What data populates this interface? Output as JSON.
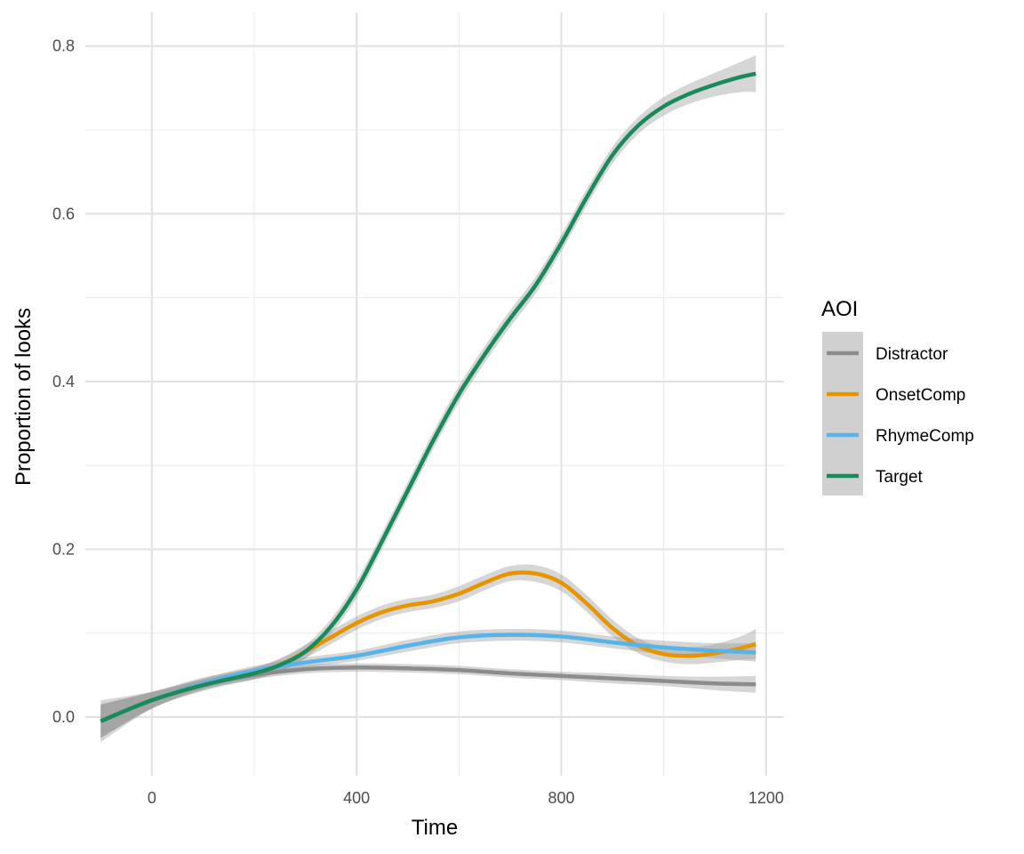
{
  "chart_data": {
    "type": "line",
    "xlabel": "Time",
    "ylabel": "Proportion of looks",
    "xlim": [
      -130,
      1235
    ],
    "ylim": [
      -0.07,
      0.84
    ],
    "x_ticks": [
      0,
      400,
      800,
      1200
    ],
    "y_ticks": [
      0.0,
      0.2,
      0.4,
      0.6,
      0.8
    ],
    "x_tick_labels": [
      "0",
      "400",
      "800",
      "1200"
    ],
    "y_tick_labels": [
      "0.0",
      "0.2",
      "0.4",
      "0.6",
      "0.8"
    ],
    "grid": true,
    "confidence_band": true,
    "legend": {
      "title": "AOI",
      "placement": "right"
    },
    "series": [
      {
        "name": "Distractor",
        "color": "#8c8c8c",
        "x": [
          -100,
          0,
          100,
          200,
          300,
          400,
          500,
          600,
          700,
          800,
          900,
          1000,
          1100,
          1180
        ],
        "y": [
          -0.005,
          0.02,
          0.038,
          0.05,
          0.057,
          0.059,
          0.058,
          0.056,
          0.052,
          0.049,
          0.046,
          0.043,
          0.04,
          0.039
        ],
        "band": [
          0.025,
          0.01,
          0.006,
          0.005,
          0.005,
          0.005,
          0.005,
          0.005,
          0.005,
          0.005,
          0.006,
          0.006,
          0.008,
          0.01
        ]
      },
      {
        "name": "OnsetComp",
        "color": "#e69500",
        "x": [
          -100,
          0,
          100,
          200,
          250,
          300,
          350,
          400,
          450,
          500,
          550,
          600,
          650,
          700,
          750,
          800,
          850,
          900,
          950,
          1000,
          1050,
          1100,
          1150,
          1180
        ],
        "y": [
          -0.005,
          0.02,
          0.04,
          0.052,
          0.062,
          0.078,
          0.095,
          0.112,
          0.125,
          0.133,
          0.138,
          0.147,
          0.16,
          0.171,
          0.171,
          0.16,
          0.135,
          0.106,
          0.085,
          0.075,
          0.073,
          0.076,
          0.082,
          0.087
        ],
        "band": [
          0.02,
          0.01,
          0.007,
          0.007,
          0.007,
          0.008,
          0.008,
          0.008,
          0.008,
          0.008,
          0.008,
          0.009,
          0.009,
          0.009,
          0.01,
          0.01,
          0.01,
          0.01,
          0.009,
          0.009,
          0.01,
          0.011,
          0.014,
          0.018
        ]
      },
      {
        "name": "RhymeComp",
        "color": "#56b4e9",
        "x": [
          -100,
          0,
          100,
          200,
          300,
          400,
          500,
          600,
          700,
          800,
          900,
          1000,
          1100,
          1180
        ],
        "y": [
          -0.005,
          0.02,
          0.04,
          0.055,
          0.065,
          0.073,
          0.085,
          0.095,
          0.098,
          0.096,
          0.089,
          0.083,
          0.079,
          0.077
        ],
        "band": [
          0.02,
          0.009,
          0.006,
          0.006,
          0.006,
          0.006,
          0.007,
          0.007,
          0.007,
          0.007,
          0.007,
          0.008,
          0.009,
          0.011
        ]
      },
      {
        "name": "Target",
        "color": "#1b8a5a",
        "x": [
          -100,
          0,
          100,
          200,
          250,
          300,
          350,
          400,
          450,
          500,
          550,
          600,
          650,
          700,
          750,
          800,
          850,
          900,
          950,
          1000,
          1050,
          1100,
          1150,
          1180
        ],
        "y": [
          -0.005,
          0.02,
          0.038,
          0.052,
          0.062,
          0.078,
          0.108,
          0.152,
          0.21,
          0.27,
          0.33,
          0.385,
          0.432,
          0.475,
          0.515,
          0.565,
          0.62,
          0.67,
          0.705,
          0.728,
          0.743,
          0.754,
          0.763,
          0.767
        ],
        "band": [
          0.02,
          0.01,
          0.007,
          0.007,
          0.008,
          0.008,
          0.009,
          0.01,
          0.01,
          0.01,
          0.01,
          0.01,
          0.01,
          0.01,
          0.01,
          0.01,
          0.01,
          0.01,
          0.01,
          0.011,
          0.012,
          0.014,
          0.018,
          0.022
        ]
      }
    ]
  }
}
